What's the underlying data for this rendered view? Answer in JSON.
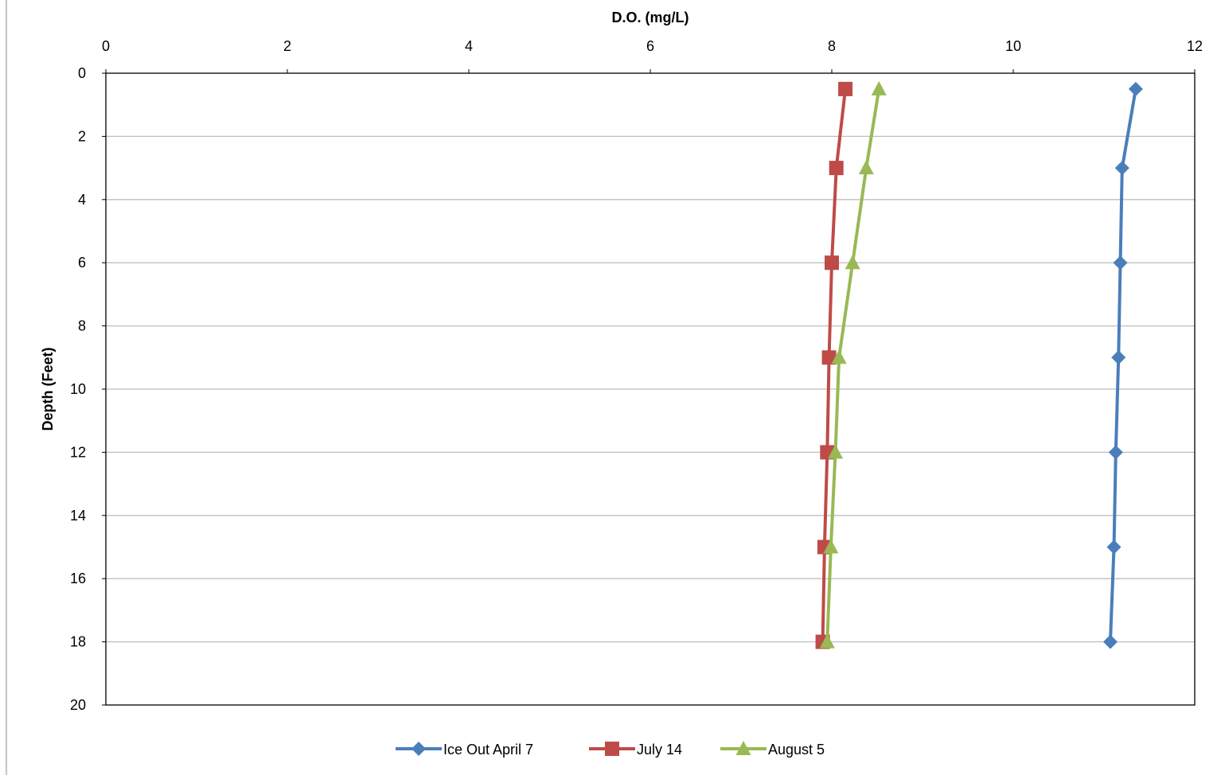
{
  "chart_data": {
    "type": "line",
    "title": "",
    "xlabel": "D.O. (mg/L)",
    "ylabel": "Depth (Feet)",
    "xlim": [
      0,
      12
    ],
    "ylim": [
      0,
      20
    ],
    "y_reversed": true,
    "x_axis_position": "top",
    "x_ticks": [
      "0",
      "2",
      "4",
      "6",
      "8",
      "10",
      "12"
    ],
    "y_ticks": [
      "0",
      "2",
      "4",
      "6",
      "8",
      "10",
      "12",
      "14",
      "16",
      "18",
      "20"
    ],
    "grid": "horizontal",
    "legend_position": "bottom",
    "series": [
      {
        "name": "Ice Out April 7",
        "color": "#4a7ebb",
        "marker": "diamond",
        "points": [
          [
            11.35,
            0.5
          ],
          [
            11.2,
            3
          ],
          [
            11.18,
            6
          ],
          [
            11.16,
            9
          ],
          [
            11.13,
            12
          ],
          [
            11.11,
            15
          ],
          [
            11.07,
            18
          ]
        ]
      },
      {
        "name": "July 14",
        "color": "#be4b48",
        "marker": "square",
        "points": [
          [
            8.15,
            0.5
          ],
          [
            8.05,
            3
          ],
          [
            8.0,
            6
          ],
          [
            7.97,
            9
          ],
          [
            7.95,
            12
          ],
          [
            7.92,
            15
          ],
          [
            7.9,
            18
          ]
        ]
      },
      {
        "name": "August 5",
        "color": "#98b954",
        "marker": "triangle",
        "points": [
          [
            8.52,
            0.5
          ],
          [
            8.38,
            3
          ],
          [
            8.23,
            6
          ],
          [
            8.08,
            9
          ],
          [
            8.04,
            12
          ],
          [
            7.99,
            15
          ],
          [
            7.95,
            18
          ]
        ]
      }
    ]
  }
}
